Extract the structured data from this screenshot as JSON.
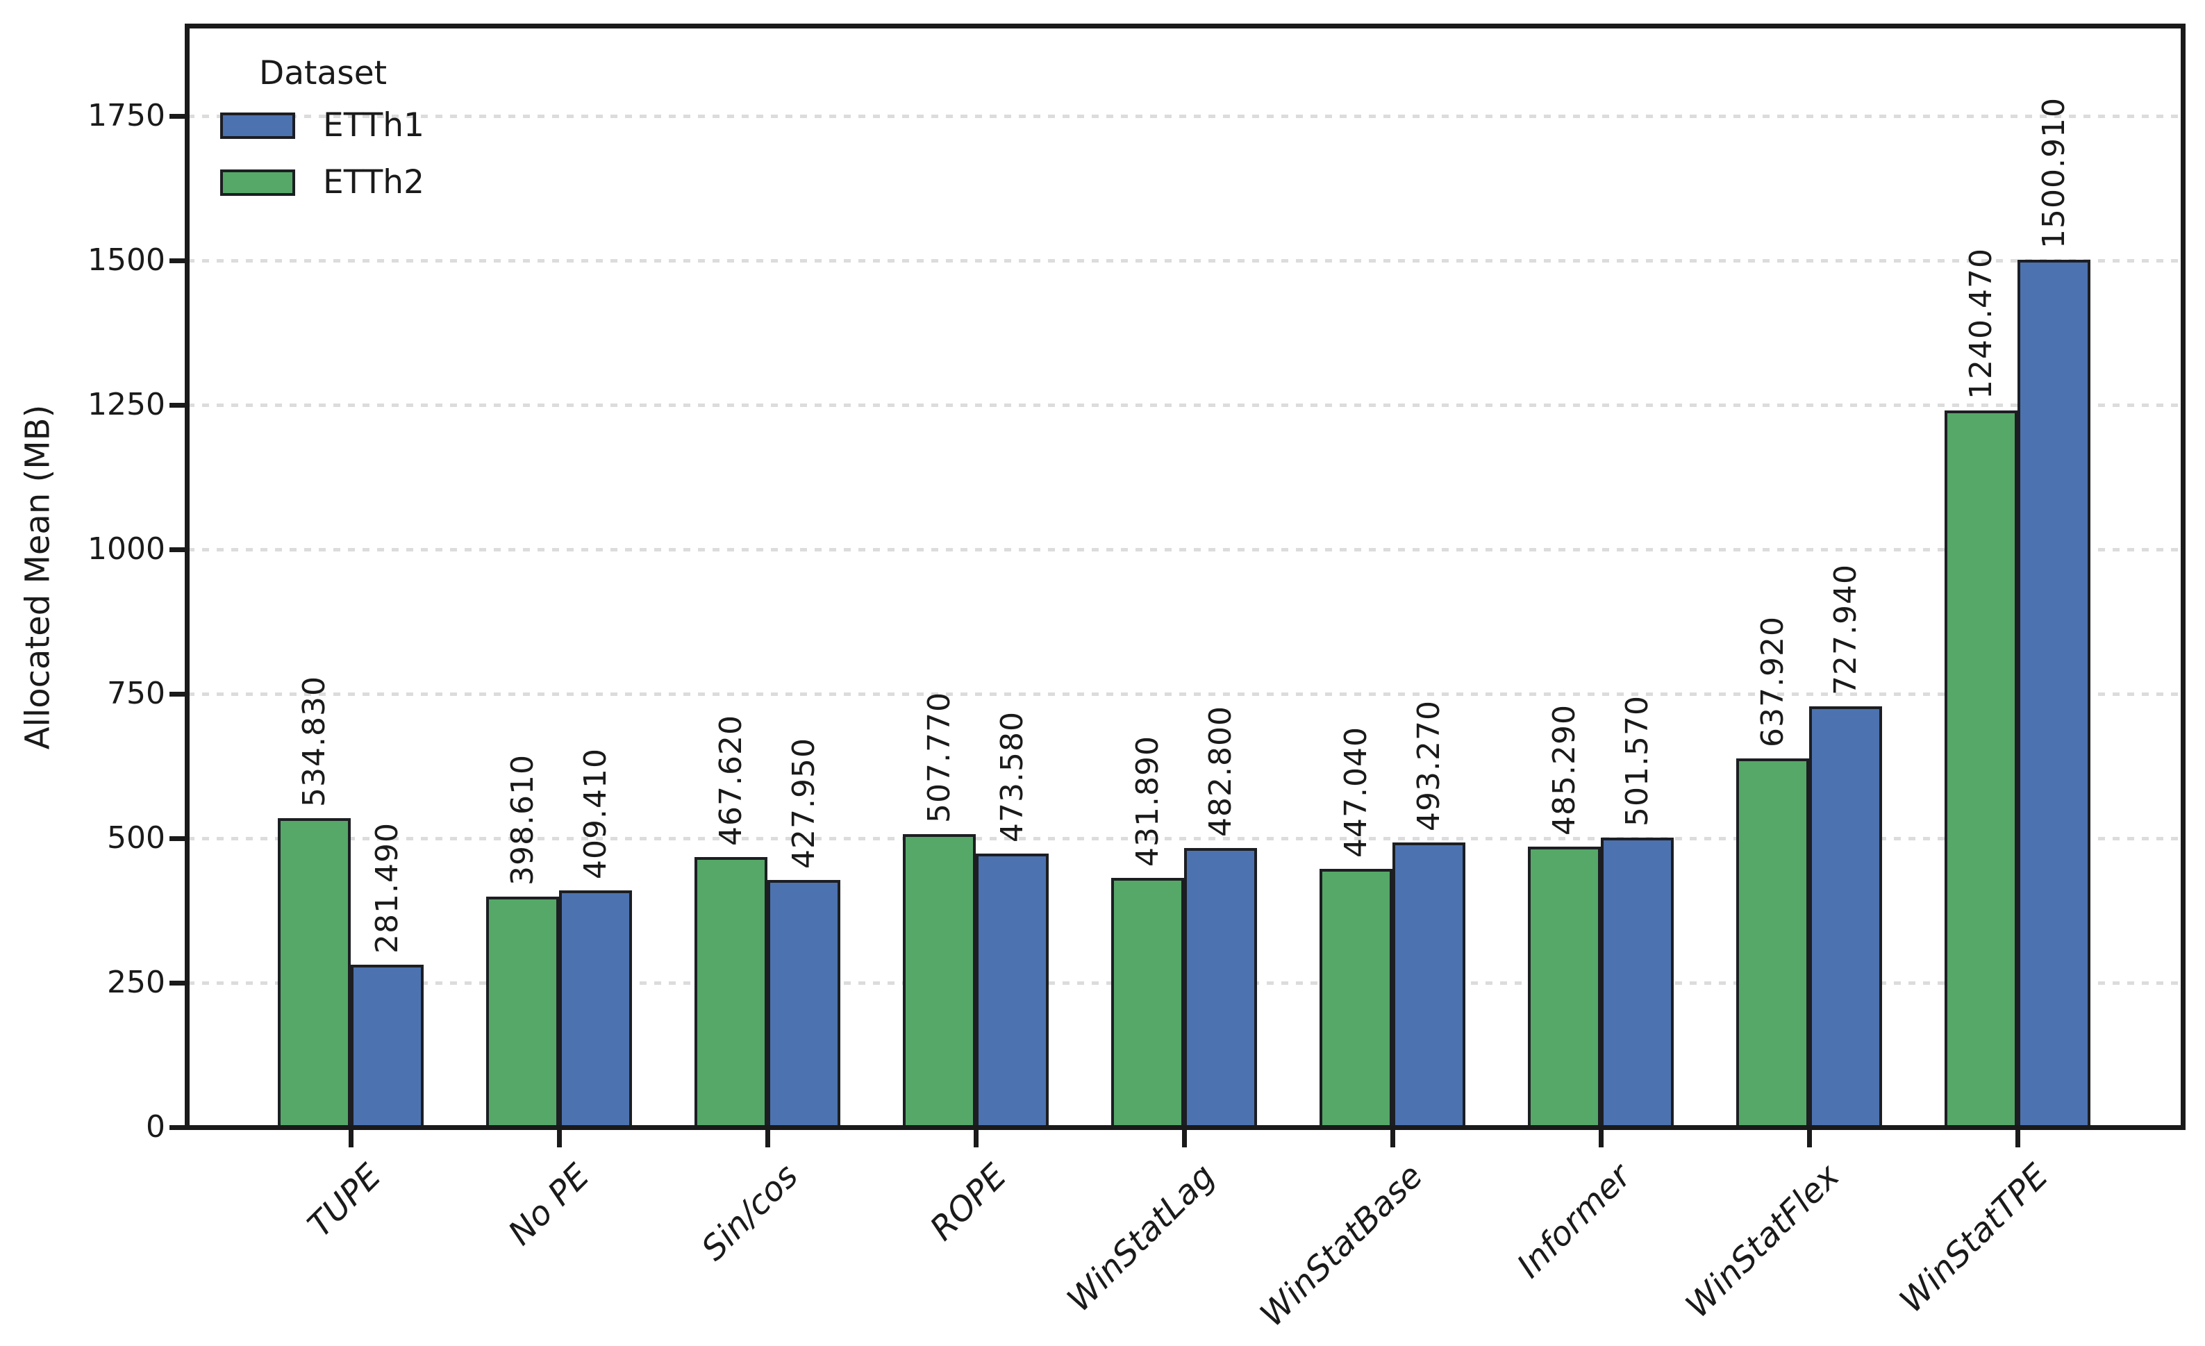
{
  "legend": {
    "title": "Dataset",
    "items": [
      {
        "label": "ETTh1",
        "color": "#4C72B0"
      },
      {
        "label": "ETTh2",
        "color": "#55A868"
      }
    ]
  },
  "chart_data": {
    "type": "bar",
    "title": "",
    "xlabel": "",
    "ylabel": "Allocated Mean (MB)",
    "categories": [
      "TUPE",
      "No PE",
      "Sin/cos",
      "ROPE",
      "WinStatLag",
      "WinStatBase",
      "Informer",
      "WinStatFlex",
      "WinStatTPE"
    ],
    "series": [
      {
        "name": "ETTh2",
        "color": "#55A868",
        "values": [
          534.83,
          398.61,
          467.62,
          507.77,
          431.89,
          447.04,
          485.29,
          637.92,
          1240.47
        ],
        "labels": [
          "534.830",
          "398.610",
          "467.620",
          "507.770",
          "431.890",
          "447.040",
          "485.290",
          "637.920",
          "1240.470"
        ]
      },
      {
        "name": "ETTh1",
        "color": "#4C72B0",
        "values": [
          281.49,
          409.41,
          427.95,
          473.58,
          482.8,
          493.27,
          501.57,
          727.94,
          1500.91
        ],
        "labels": [
          "281.490",
          "409.410",
          "427.950",
          "473.580",
          "482.800",
          "493.270",
          "501.570",
          "727.940",
          "1500.910"
        ]
      }
    ],
    "ylim": [
      0,
      1905
    ],
    "yticks": [
      0,
      250,
      500,
      750,
      1000,
      1250,
      1500,
      1750
    ],
    "grid": "horizontal dotted gridlines at each y tick",
    "legend_position": "upper left inside axes",
    "bar_value_labels": "above each bar, rotated 90deg, 3 decimals",
    "xtick_label_style": "italic, rotated 45deg, right-anchored"
  }
}
